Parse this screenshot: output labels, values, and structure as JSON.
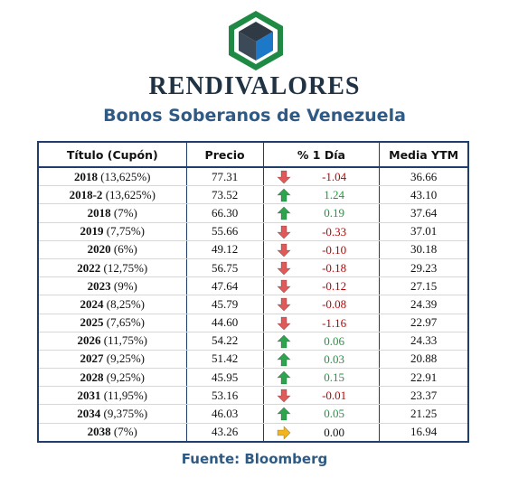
{
  "header": {
    "brand": "RENDIVALORES",
    "subtitle": "Bonos Soberanos de Venezuela",
    "logo_icon": "cube-hexagon-logo"
  },
  "table": {
    "columns": [
      "Título (Cupón)",
      "Precio",
      "% 1 Día",
      "Media YTM"
    ],
    "rows": [
      {
        "year": "2018",
        "coupon": " (13,625%)",
        "price": "77.31",
        "change": "-1.04",
        "dir": "down",
        "ytm": "36.66"
      },
      {
        "year": "2018-2",
        "coupon": " (13,625%)",
        "price": "73.52",
        "change": "1.24",
        "dir": "up",
        "ytm": "43.10"
      },
      {
        "year": "2018",
        "coupon": " (7%)",
        "price": "66.30",
        "change": "0.19",
        "dir": "up",
        "ytm": "37.64"
      },
      {
        "year": "2019",
        "coupon": " (7,75%)",
        "price": "55.66",
        "change": "-0.33",
        "dir": "down",
        "ytm": "37.01"
      },
      {
        "year": "2020",
        "coupon": " (6%)",
        "price": "49.12",
        "change": "-0.10",
        "dir": "down",
        "ytm": "30.18"
      },
      {
        "year": "2022",
        "coupon": " (12,75%)",
        "price": "56.75",
        "change": "-0.18",
        "dir": "down",
        "ytm": "29.23"
      },
      {
        "year": "2023",
        "coupon": " (9%)",
        "price": "47.64",
        "change": "-0.12",
        "dir": "down",
        "ytm": "27.15"
      },
      {
        "year": "2024",
        "coupon": " (8,25%)",
        "price": "45.79",
        "change": "-0.08",
        "dir": "down",
        "ytm": "24.39"
      },
      {
        "year": "2025",
        "coupon": " (7,65%)",
        "price": "44.60",
        "change": "-1.16",
        "dir": "down",
        "ytm": "22.97"
      },
      {
        "year": "2026",
        "coupon": " (11,75%)",
        "price": "54.22",
        "change": "0.06",
        "dir": "up",
        "ytm": "24.33"
      },
      {
        "year": "2027",
        "coupon": " (9,25%)",
        "price": "51.42",
        "change": "0.03",
        "dir": "up",
        "ytm": "20.88"
      },
      {
        "year": "2028",
        "coupon": " (9,25%)",
        "price": "45.95",
        "change": "0.15",
        "dir": "up",
        "ytm": "22.91"
      },
      {
        "year": "2031",
        "coupon": " (11,95%)",
        "price": "53.16",
        "change": "-0.01",
        "dir": "down",
        "ytm": "23.37"
      },
      {
        "year": "2034",
        "coupon": " (9,375%)",
        "price": "46.03",
        "change": "0.05",
        "dir": "up",
        "ytm": "21.25"
      },
      {
        "year": "2038",
        "coupon": " (7%)",
        "price": "43.26",
        "change": "0.00",
        "dir": "flat",
        "ytm": "16.94"
      }
    ]
  },
  "footer": {
    "source": "Fuente: Bloomberg"
  },
  "colors": {
    "up": "#2ea44f",
    "down": "#e05a5a",
    "flat": "#f2b51d",
    "border": "#1f3e6b",
    "accent": "#2e5a85"
  }
}
